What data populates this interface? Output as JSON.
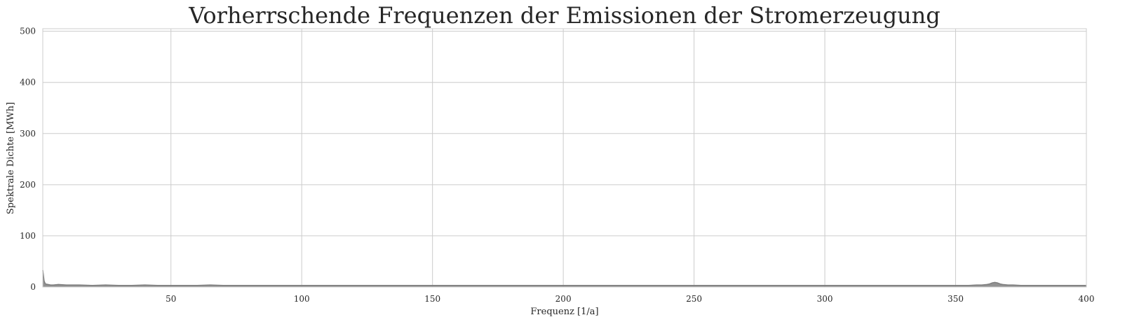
{
  "chart_data": {
    "type": "area",
    "title": "Vorherrschende Frequenzen der Emissionen der Stromerzeugung",
    "xlabel": "Frequenz [1/a]",
    "ylabel": "Spektrale Dichte [MWh]",
    "xlim": [
      1,
      400
    ],
    "ylim": [
      0,
      505
    ],
    "xticks": [
      50,
      100,
      150,
      200,
      250,
      300,
      350,
      400
    ],
    "xtick_labels": [
      "50",
      "100",
      "150",
      "200",
      "250",
      "300",
      "350",
      "400"
    ],
    "yticks": [
      0,
      100,
      200,
      300,
      400,
      500
    ],
    "ytick_labels": [
      "0",
      "100",
      "200",
      "300",
      "400",
      "500"
    ],
    "grid": true,
    "series": [
      {
        "color": "#7f7f7f",
        "x": [
          1,
          1.5,
          2,
          3,
          4,
          5,
          7,
          10,
          15,
          20,
          25,
          30,
          35,
          40,
          45,
          50,
          60,
          65,
          70,
          80,
          90,
          100,
          110,
          120,
          130,
          140,
          150,
          160,
          170,
          180,
          190,
          200,
          210,
          220,
          230,
          240,
          250,
          260,
          270,
          280,
          290,
          300,
          310,
          320,
          330,
          340,
          350,
          355,
          358,
          360,
          362,
          363,
          364,
          365,
          366,
          367,
          368,
          370,
          372,
          375,
          380,
          390,
          400
        ],
        "y": [
          33,
          12,
          6,
          5,
          4,
          4,
          5,
          4,
          4,
          3,
          4,
          3,
          3,
          4,
          3,
          3,
          3,
          4,
          3,
          3,
          3,
          3,
          3,
          3,
          3,
          3,
          3,
          3,
          3,
          3,
          3,
          3,
          3,
          3,
          3,
          3,
          3,
          3,
          3,
          3,
          3,
          3,
          3,
          3,
          3,
          3,
          3,
          3,
          4,
          4,
          5,
          6,
          8,
          9,
          8,
          6,
          5,
          4,
          4,
          3,
          3,
          3,
          3
        ]
      }
    ]
  }
}
